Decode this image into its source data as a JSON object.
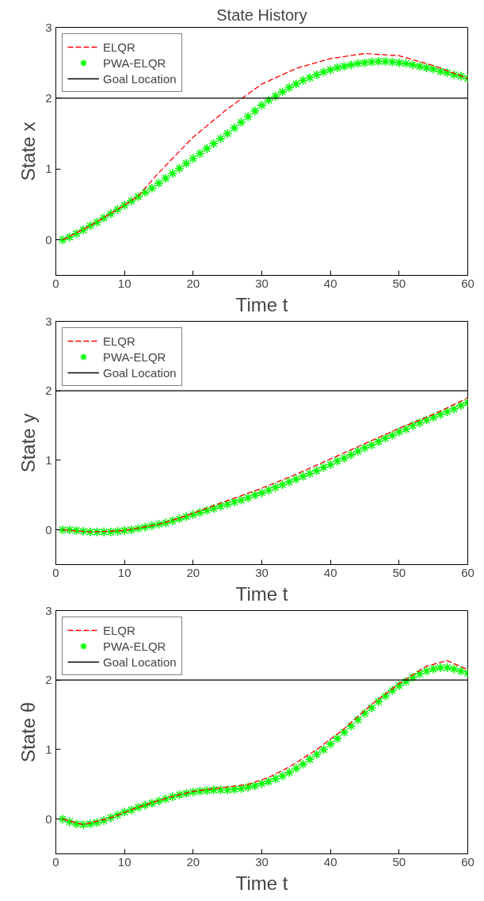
{
  "chart_data": [
    {
      "type": "line",
      "title": "State History",
      "xlabel": "Time t",
      "ylabel": "State x",
      "xlim": [
        0,
        60
      ],
      "ylim": [
        -0.5,
        3
      ],
      "xticks": [
        0,
        10,
        20,
        30,
        40,
        50,
        60
      ],
      "yticks": [
        0,
        1,
        2,
        3
      ],
      "legend": "top left",
      "grid": false,
      "series": [
        {
          "name": "ELQR",
          "color": "#ff0000",
          "line_style": "dashed",
          "marker": "none",
          "x": [
            1,
            5,
            10,
            12,
            15,
            20,
            25,
            30,
            35,
            40,
            45,
            50,
            55,
            60
          ],
          "values": [
            0,
            0.2,
            0.49,
            0.62,
            0.95,
            1.45,
            1.85,
            2.2,
            2.42,
            2.56,
            2.63,
            2.6,
            2.46,
            2.28
          ]
        },
        {
          "name": "PWA-ELQR",
          "color": "#00ff00",
          "type": "scatter",
          "marker": "cross",
          "x": [
            1,
            2,
            3,
            4,
            5,
            6,
            7,
            8,
            9,
            10,
            11,
            12,
            13,
            14,
            15,
            16,
            17,
            18,
            19,
            20,
            21,
            22,
            23,
            24,
            25,
            26,
            27,
            28,
            29,
            30,
            31,
            32,
            33,
            34,
            35,
            36,
            37,
            38,
            39,
            40,
            41,
            42,
            43,
            44,
            45,
            46,
            47,
            48,
            49,
            50,
            51,
            52,
            53,
            54,
            55,
            56,
            57,
            58,
            59,
            60
          ],
          "values": [
            0,
            0.04,
            0.09,
            0.14,
            0.2,
            0.25,
            0.31,
            0.37,
            0.43,
            0.49,
            0.55,
            0.61,
            0.67,
            0.73,
            0.8,
            0.87,
            0.94,
            1.01,
            1.08,
            1.15,
            1.22,
            1.29,
            1.36,
            1.43,
            1.5,
            1.58,
            1.66,
            1.74,
            1.82,
            1.9,
            1.97,
            2.03,
            2.09,
            2.15,
            2.2,
            2.25,
            2.29,
            2.33,
            2.37,
            2.4,
            2.43,
            2.45,
            2.47,
            2.49,
            2.5,
            2.51,
            2.52,
            2.52,
            2.51,
            2.5,
            2.49,
            2.47,
            2.45,
            2.43,
            2.41,
            2.38,
            2.36,
            2.33,
            2.31,
            2.28
          ]
        },
        {
          "name": "Goal Location",
          "color": "#000000",
          "line_style": "solid",
          "marker": "none",
          "x": [
            0,
            60
          ],
          "values": [
            2,
            2
          ]
        }
      ]
    },
    {
      "type": "line",
      "xlabel": "Time t",
      "ylabel": "State y",
      "xlim": [
        0,
        60
      ],
      "ylim": [
        -0.5,
        3
      ],
      "xticks": [
        0,
        10,
        20,
        30,
        40,
        50,
        60
      ],
      "yticks": [
        0,
        1,
        2,
        3
      ],
      "legend": "top left",
      "grid": false,
      "series": [
        {
          "name": "ELQR",
          "color": "#ff0000",
          "line_style": "dashed",
          "marker": "none",
          "x": [
            1,
            5,
            10,
            15,
            18,
            20,
            25,
            30,
            35,
            40,
            45,
            50,
            55,
            60
          ],
          "values": [
            0,
            -0.03,
            -0.01,
            0.08,
            0.17,
            0.24,
            0.42,
            0.6,
            0.8,
            1.02,
            1.24,
            1.46,
            1.66,
            1.9
          ]
        },
        {
          "name": "PWA-ELQR",
          "color": "#00ff00",
          "type": "scatter",
          "marker": "cross",
          "x": [
            1,
            2,
            3,
            4,
            5,
            6,
            7,
            8,
            9,
            10,
            11,
            12,
            13,
            14,
            15,
            16,
            17,
            18,
            19,
            20,
            21,
            22,
            23,
            24,
            25,
            26,
            27,
            28,
            29,
            30,
            31,
            32,
            33,
            34,
            35,
            36,
            37,
            38,
            39,
            40,
            41,
            42,
            43,
            44,
            45,
            46,
            47,
            48,
            49,
            50,
            51,
            52,
            53,
            54,
            55,
            56,
            57,
            58,
            59,
            60
          ],
          "values": [
            0,
            0,
            -0.01,
            -0.02,
            -0.03,
            -0.03,
            -0.03,
            -0.03,
            -0.02,
            -0.01,
            0,
            0.02,
            0.04,
            0.06,
            0.08,
            0.1,
            0.13,
            0.16,
            0.19,
            0.22,
            0.25,
            0.28,
            0.31,
            0.34,
            0.37,
            0.4,
            0.43,
            0.46,
            0.5,
            0.53,
            0.57,
            0.61,
            0.65,
            0.69,
            0.73,
            0.77,
            0.81,
            0.85,
            0.9,
            0.94,
            0.99,
            1.03,
            1.08,
            1.13,
            1.18,
            1.22,
            1.27,
            1.32,
            1.36,
            1.41,
            1.45,
            1.5,
            1.54,
            1.58,
            1.62,
            1.66,
            1.7,
            1.74,
            1.79,
            1.83
          ]
        },
        {
          "name": "Goal Location",
          "color": "#000000",
          "line_style": "solid",
          "marker": "none",
          "x": [
            0,
            60
          ],
          "values": [
            2,
            2
          ]
        }
      ]
    },
    {
      "type": "line",
      "xlabel": "Time t",
      "ylabel": "State θ",
      "xlim": [
        0,
        60
      ],
      "ylim": [
        -0.5,
        3
      ],
      "xticks": [
        0,
        10,
        20,
        30,
        40,
        50,
        60
      ],
      "yticks": [
        0,
        1,
        2,
        3
      ],
      "legend": "top left",
      "grid": false,
      "series": [
        {
          "name": "ELQR",
          "color": "#ff0000",
          "line_style": "dashed",
          "marker": "none",
          "x": [
            1,
            4,
            8,
            12,
            16,
            20,
            24,
            28,
            31,
            34,
            38,
            42,
            46,
            50,
            54,
            57,
            60
          ],
          "values": [
            0,
            -0.08,
            0.02,
            0.17,
            0.3,
            0.4,
            0.45,
            0.5,
            0.6,
            0.75,
            1.0,
            1.3,
            1.65,
            1.95,
            2.2,
            2.28,
            2.15
          ]
        },
        {
          "name": "PWA-ELQR",
          "color": "#00ff00",
          "type": "scatter",
          "marker": "cross",
          "x": [
            1,
            2,
            3,
            4,
            5,
            6,
            7,
            8,
            9,
            10,
            11,
            12,
            13,
            14,
            15,
            16,
            17,
            18,
            19,
            20,
            21,
            22,
            23,
            24,
            25,
            26,
            27,
            28,
            29,
            30,
            31,
            32,
            33,
            34,
            35,
            36,
            37,
            38,
            39,
            40,
            41,
            42,
            43,
            44,
            45,
            46,
            47,
            48,
            49,
            50,
            51,
            52,
            53,
            54,
            55,
            56,
            57,
            58,
            59,
            60
          ],
          "values": [
            0,
            -0.04,
            -0.07,
            -0.08,
            -0.07,
            -0.05,
            -0.02,
            0.02,
            0.06,
            0.1,
            0.13,
            0.17,
            0.2,
            0.23,
            0.26,
            0.29,
            0.32,
            0.35,
            0.37,
            0.39,
            0.4,
            0.41,
            0.42,
            0.42,
            0.42,
            0.43,
            0.44,
            0.46,
            0.48,
            0.51,
            0.54,
            0.58,
            0.62,
            0.67,
            0.73,
            0.79,
            0.86,
            0.93,
            1.0,
            1.08,
            1.16,
            1.25,
            1.34,
            1.43,
            1.52,
            1.6,
            1.69,
            1.77,
            1.85,
            1.92,
            1.98,
            2.04,
            2.09,
            2.13,
            2.16,
            2.18,
            2.18,
            2.16,
            2.13,
            2.1
          ]
        },
        {
          "name": "Goal Location",
          "color": "#000000",
          "line_style": "solid",
          "marker": "none",
          "x": [
            0,
            60
          ],
          "values": [
            2,
            2
          ]
        }
      ]
    }
  ]
}
